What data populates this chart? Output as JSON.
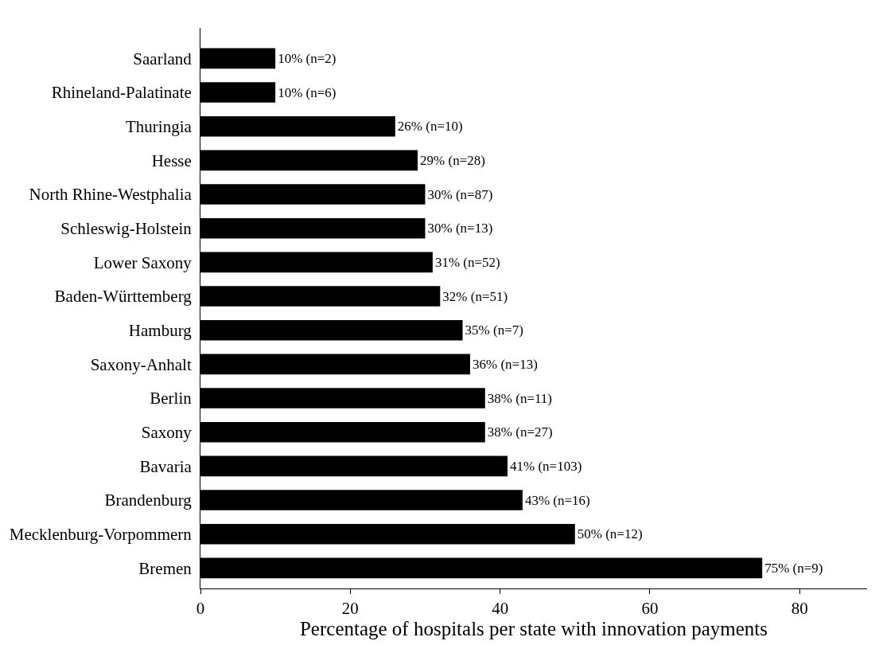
{
  "chart_data": {
    "type": "bar",
    "orientation": "horizontal",
    "xlabel": "Percentage of hospitals per state with innovation payments",
    "categories": [
      "Saarland",
      "Rhineland-Palatinate",
      "Thuringia",
      "Hesse",
      "North Rhine-Westphalia",
      "Schleswig-Holstein",
      "Lower Saxony",
      "Baden-Württemberg",
      "Hamburg",
      "Saxony-Anhalt",
      "Berlin",
      "Saxony",
      "Bavaria",
      "Brandenburg",
      "Mecklenburg-Vorpommern",
      "Bremen"
    ],
    "values": [
      10,
      10,
      26,
      29,
      30,
      30,
      31,
      32,
      35,
      36,
      38,
      38,
      41,
      43,
      50,
      75
    ],
    "value_labels": [
      "10% (n=2)",
      "10% (n=6)",
      "26% (n=10)",
      "29% (n=28)",
      "30% (n=87)",
      "30% (n=13)",
      "31% (n=52)",
      "32% (n=51)",
      "35% (n=7)",
      "36% (n=13)",
      "38% (n=11)",
      "38% (n=27)",
      "41% (n=103)",
      "43% (n=16)",
      "50% (n=12)",
      "75% (n=9)"
    ],
    "color": "#000000",
    "xlim": [
      0,
      89
    ],
    "xticks": [
      0,
      20,
      40,
      60,
      80
    ],
    "grid": false
  }
}
